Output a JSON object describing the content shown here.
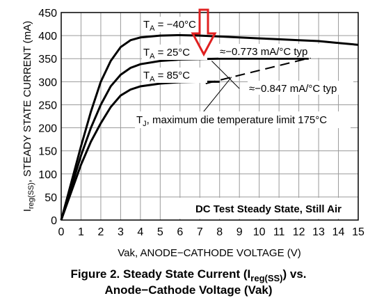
{
  "chart_data": {
    "type": "line",
    "y_label": [
      "I",
      "reg(SS)",
      ", STEADY STATE CURRENT (mA)"
    ],
    "x_label": "Vak, ANODE−CATHODE VOLTAGE (V)",
    "caption": [
      [
        "Figure 2. Steady State Current (I",
        "reg(SS)",
        ") vs."
      ],
      [
        "Anode−Cathode Voltage (Vak)"
      ]
    ],
    "box_text": "DC Test Steady State, Still Air",
    "x": [
      0,
      0.5,
      1,
      1.5,
      2,
      2.5,
      3,
      3.5,
      4,
      5,
      6,
      7,
      8,
      9,
      10,
      11,
      12,
      12.5,
      13,
      14,
      15
    ],
    "series": [
      {
        "name": [
          "T",
          "A",
          " = −40°C"
        ],
        "color": "#000000",
        "values": [
          0,
          80,
          160,
          235,
          300,
          345,
          375,
          390,
          396,
          400,
          401,
          400,
          398,
          396,
          394,
          392,
          390,
          389,
          388,
          384,
          380
        ]
      },
      {
        "name": [
          "T",
          "A",
          " = 25°C"
        ],
        "color": "#000000",
        "values": [
          0,
          70,
          140,
          200,
          250,
          290,
          315,
          330,
          338,
          345,
          348,
          349,
          350,
          350,
          350,
          350,
          350,
          350,
          null,
          null,
          null
        ]
      },
      {
        "name": [
          "T",
          "A",
          " = 85°C"
        ],
        "color": "#000000",
        "values": [
          0,
          60,
          120,
          170,
          210,
          245,
          270,
          283,
          290,
          296,
          299,
          300,
          300,
          null,
          null,
          null,
          null,
          null,
          null,
          null,
          null
        ]
      }
    ],
    "annotations": [
      "≈−0.773 mA/°C typ",
      "≈−0.847 mA/°C typ",
      [
        "T",
        "J",
        ", maximum die temperature limit 175°C"
      ]
    ],
    "xlim": [
      0,
      15
    ],
    "xticks": [
      0,
      1,
      2,
      3,
      4,
      5,
      6,
      7,
      8,
      9,
      10,
      11,
      12,
      13,
      14,
      15
    ],
    "ylim": [
      0,
      450
    ],
    "yticks": [
      0,
      50,
      100,
      150,
      200,
      250,
      300,
      350,
      400,
      450
    ],
    "grid": true
  }
}
